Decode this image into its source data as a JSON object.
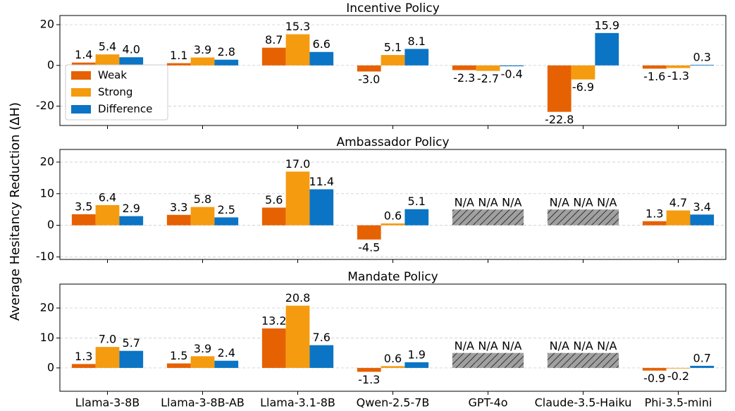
{
  "ylabel": "Average Hesitancy Reduction (ΔH)",
  "chart_data": [
    {
      "type": "bar",
      "title": "Incentive Policy",
      "ylim": [
        -29.5,
        24.5
      ],
      "yticks": [
        -20,
        0,
        20
      ],
      "grid": true,
      "legend": "center left",
      "series": [
        {
          "name": "Weak",
          "color": "#e66101",
          "values": [
            1.4,
            1.1,
            8.7,
            -3.0,
            -2.3,
            -22.8,
            -1.6
          ],
          "value_labels": [
            "1.4",
            "1.1",
            "8.7",
            "-3.0",
            "-2.3",
            "-22.8",
            "-1.6"
          ]
        },
        {
          "name": "Strong",
          "color": "#f59b10",
          "values": [
            5.4,
            3.9,
            15.3,
            5.1,
            -2.7,
            -6.9,
            -1.3
          ],
          "value_labels": [
            "5.4",
            "3.9",
            "15.3",
            "5.1",
            "-2.7",
            "-6.9",
            "-1.3"
          ]
        },
        {
          "name": "Difference",
          "color": "#0b74c4",
          "values": [
            4.0,
            2.8,
            6.6,
            8.1,
            -0.4,
            15.9,
            0.3
          ],
          "value_labels": [
            "4.0",
            "2.8",
            "6.6",
            "8.1",
            "-0.4",
            "15.9",
            "0.3"
          ]
        }
      ]
    },
    {
      "type": "bar",
      "title": "Ambassador Policy",
      "ylim": [
        -10.8,
        24
      ],
      "yticks": [
        -10,
        0,
        10,
        20
      ],
      "grid": true,
      "na_value": 5,
      "series": [
        {
          "name": "Weak",
          "color": "#e66101",
          "values": [
            3.5,
            3.3,
            5.6,
            -4.5,
            null,
            null,
            1.3
          ],
          "value_labels": [
            "3.5",
            "3.3",
            "5.6",
            "-4.5",
            "N/A",
            "N/A",
            "1.3"
          ]
        },
        {
          "name": "Strong",
          "color": "#f59b10",
          "values": [
            6.4,
            5.8,
            17.0,
            0.6,
            null,
            null,
            4.7
          ],
          "value_labels": [
            "6.4",
            "5.8",
            "17.0",
            "0.6",
            "N/A",
            "N/A",
            "4.7"
          ]
        },
        {
          "name": "Difference",
          "color": "#0b74c4",
          "values": [
            2.9,
            2.5,
            11.4,
            5.1,
            null,
            null,
            3.4
          ],
          "value_labels": [
            "2.9",
            "2.5",
            "11.4",
            "5.1",
            "N/A",
            "N/A",
            "3.4"
          ]
        }
      ]
    },
    {
      "type": "bar",
      "title": "Mandate Policy",
      "ylim": [
        -7.8,
        28
      ],
      "yticks": [
        0,
        10,
        20
      ],
      "grid": true,
      "na_value": 5,
      "categories": [
        "Llama-3-8B",
        "Llama-3-8B-AB",
        "Llama-3.1-8B",
        "Qwen-2.5-7B",
        "GPT-4o",
        "Claude-3.5-Haiku",
        "Phi-3.5-mini"
      ],
      "series": [
        {
          "name": "Weak",
          "color": "#e66101",
          "values": [
            1.3,
            1.5,
            13.2,
            -1.3,
            null,
            null,
            -0.9
          ],
          "value_labels": [
            "1.3",
            "1.5",
            "13.2",
            "-1.3",
            "N/A",
            "N/A",
            "-0.9"
          ]
        },
        {
          "name": "Strong",
          "color": "#f59b10",
          "values": [
            7.0,
            3.9,
            20.8,
            0.6,
            null,
            null,
            -0.2
          ],
          "value_labels": [
            "7.0",
            "3.9",
            "20.8",
            "0.6",
            "N/A",
            "N/A",
            "-0.2"
          ]
        },
        {
          "name": "Difference",
          "color": "#0b74c4",
          "values": [
            5.7,
            2.4,
            7.6,
            1.9,
            null,
            null,
            0.7
          ],
          "value_labels": [
            "5.7",
            "2.4",
            "7.6",
            "1.9",
            "N/A",
            "N/A",
            "0.7"
          ]
        }
      ]
    }
  ]
}
